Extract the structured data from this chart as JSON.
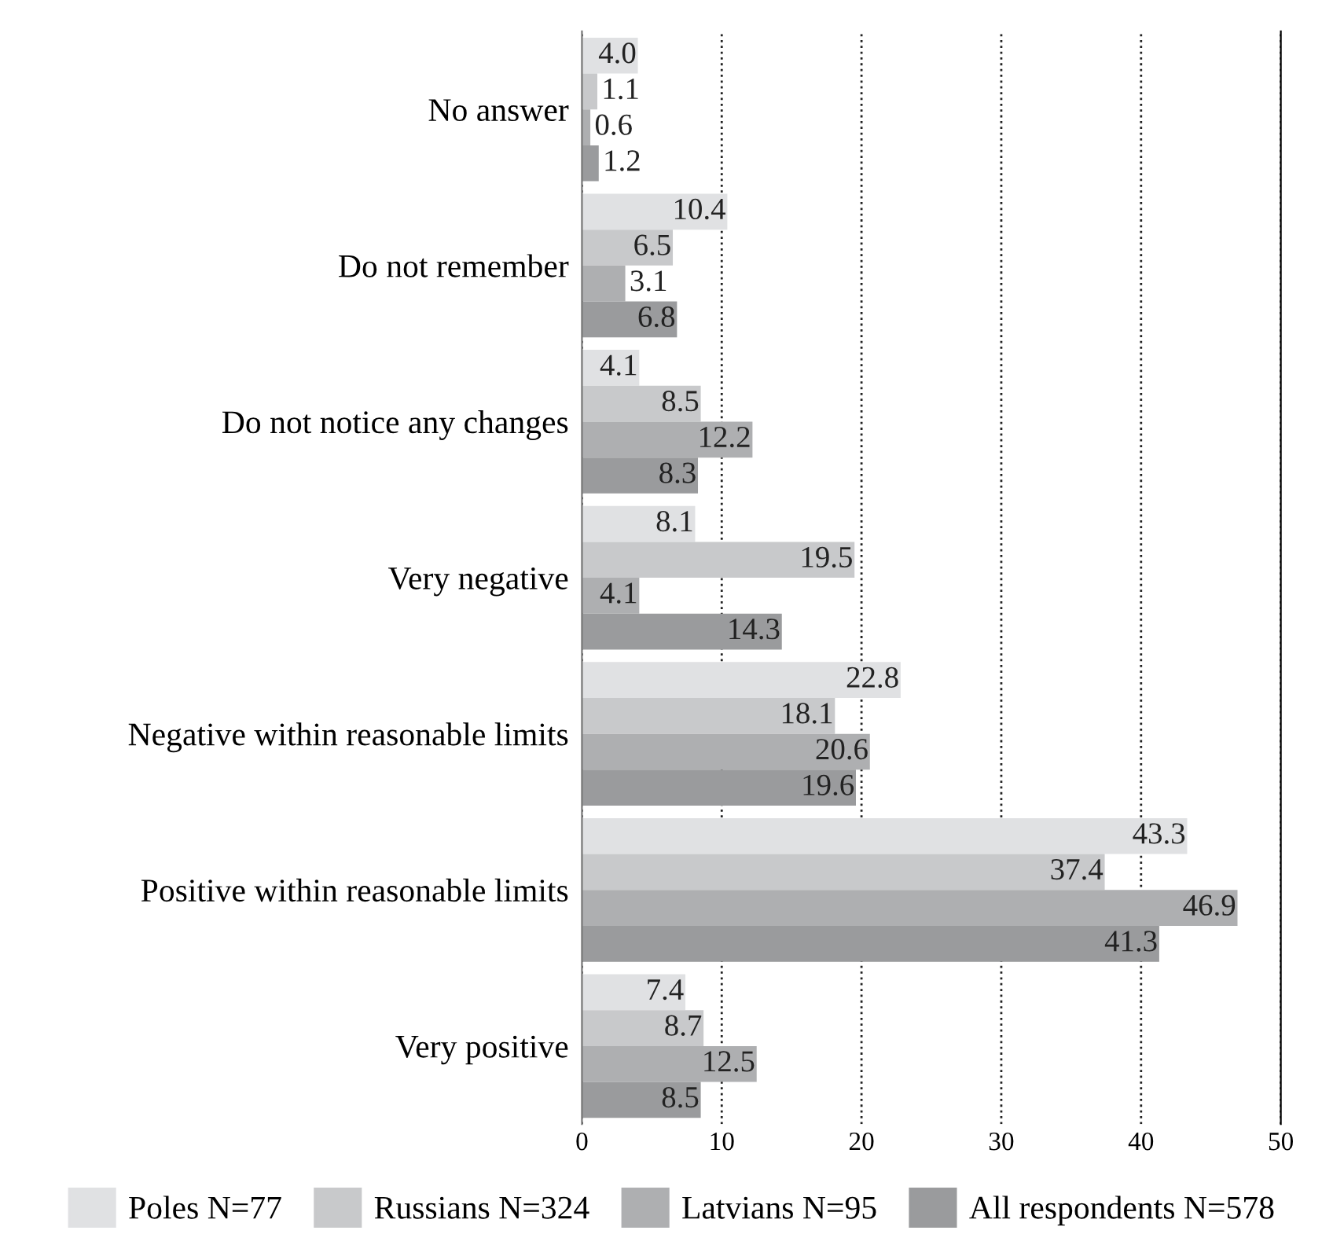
{
  "chart_data": {
    "type": "bar",
    "orientation": "horizontal",
    "categories": [
      "No answer",
      "Do not remember",
      "Do not notice any changes",
      "Very negative",
      "Negative within reasonable limits",
      "Positive within reasonable limits",
      "Very positive"
    ],
    "series": [
      {
        "name": "Poles N=77",
        "color": "#e0e1e3",
        "values": [
          4.0,
          10.4,
          4.1,
          8.1,
          22.8,
          43.3,
          7.4
        ],
        "value_labels": [
          "4.0",
          "10.4",
          "4.1",
          "8.1",
          "22.8",
          "43.3",
          "7.4"
        ]
      },
      {
        "name": "Russians N=324",
        "color": "#c8c9cb",
        "values": [
          1.1,
          6.5,
          8.5,
          19.5,
          18.1,
          37.4,
          8.7
        ],
        "value_labels": [
          "1.1",
          "6.5",
          "8.5",
          "19.5",
          "18.1",
          "37.4",
          "8.7"
        ]
      },
      {
        "name": "Latvians N=95",
        "color": "#aeafb1",
        "values": [
          0.6,
          3.1,
          12.2,
          4.1,
          20.6,
          46.9,
          12.5
        ],
        "value_labels": [
          "0.6",
          "3.1",
          "12.2",
          "4.1",
          "20.6",
          "46.9",
          "12.5"
        ]
      },
      {
        "name": "All respondents N=578",
        "color": "#9a9b9d",
        "values": [
          1.2,
          6.8,
          8.3,
          14.3,
          19.6,
          41.3,
          8.5
        ],
        "value_labels": [
          "1.2",
          "6.8",
          "8.3",
          "14.3",
          "19.6",
          "41.3",
          "8.5"
        ]
      }
    ],
    "xlim": [
      0,
      50
    ],
    "xticks": [
      0,
      10,
      20,
      30,
      40,
      50
    ],
    "grid": "x",
    "legend": "bottom"
  }
}
